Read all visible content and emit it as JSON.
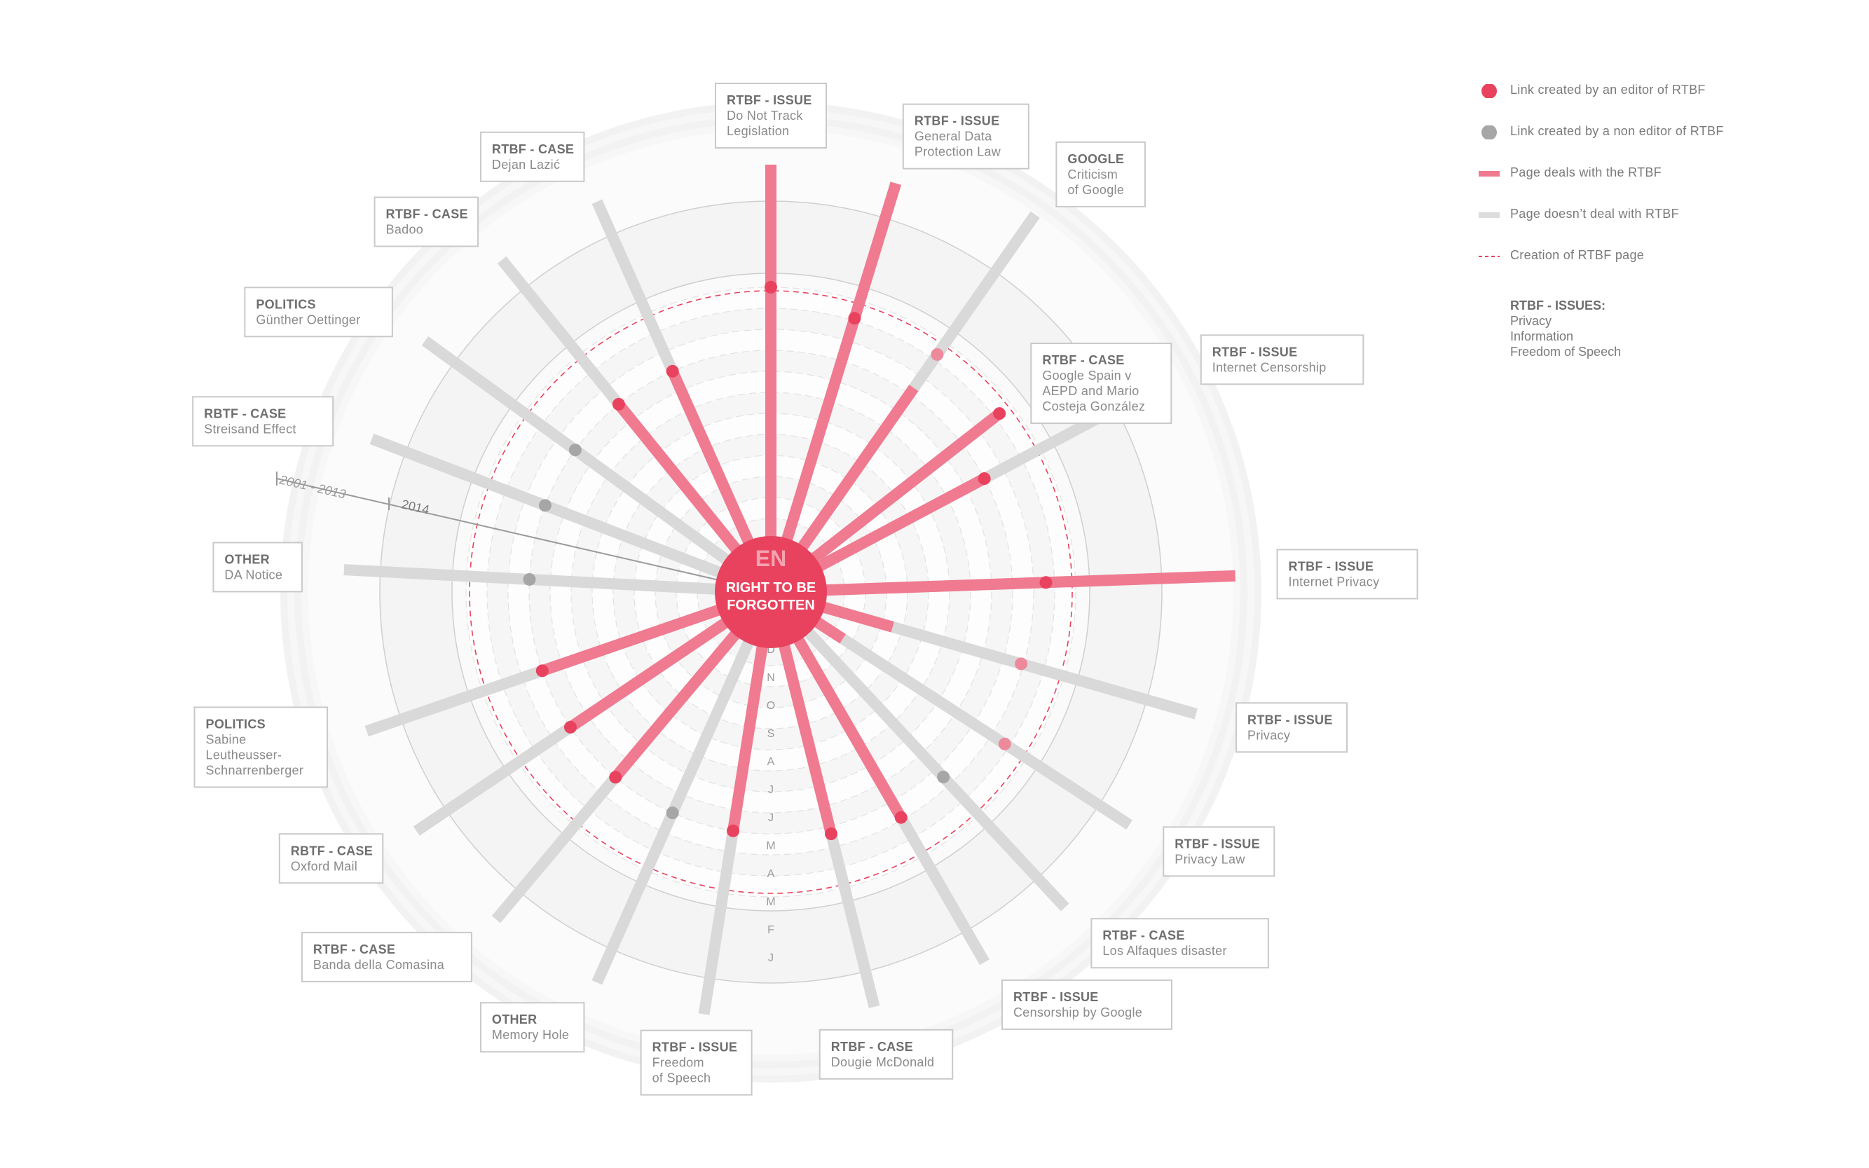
{
  "center": {
    "code": "EN",
    "title_line1": "RIGHT TO BE",
    "title_line2": "FORGOTTEN"
  },
  "colors": {
    "red": "#e8425e",
    "red_light": "#f07a90",
    "grey_bar": "#d9d9d9",
    "grey_dot": "#a6a6a6",
    "ring_fill": "#f4f4f4"
  },
  "year_labels": {
    "outer": "2001 - 2013",
    "inner": "2014"
  },
  "months": [
    "D",
    "N",
    "O",
    "S",
    "A",
    "J",
    "J",
    "M",
    "A",
    "M",
    "F",
    "J"
  ],
  "legend": {
    "items": [
      {
        "type": "dot-red",
        "label": "Link created by an editor of RTBF"
      },
      {
        "type": "dot-grey",
        "label": "Link created by a non editor of RTBF"
      },
      {
        "type": "bar-red",
        "label": "Page deals with the RTBF"
      },
      {
        "type": "bar-grey",
        "label": "Page doesn’t deal with RTBF"
      },
      {
        "type": "dash-red",
        "label": "Creation of RTBF page"
      }
    ],
    "issues_title": "RTBF - ISSUES:",
    "issues": [
      "Privacy",
      "Information",
      "Freedom of Speech"
    ]
  },
  "spokes": [
    {
      "category": "RTBF - ISSUE",
      "name": [
        "Do Not Track",
        "Legislation"
      ],
      "angle": 0,
      "length": 1.0,
      "red_to": 1.0,
      "dot_at": 0.67,
      "dot": "red"
    },
    {
      "category": "RTBF - ISSUE",
      "name": [
        "General Data",
        "Protection Law"
      ],
      "angle": 17,
      "length": 1.0,
      "red_to": 1.0,
      "dot_at": 0.62,
      "dot": "red"
    },
    {
      "category": "GOOGLE",
      "name": [
        "Criticism",
        "of Google"
      ],
      "angle": 35,
      "length": 1.09,
      "red_to": 0.52,
      "dot_at": 0.63,
      "dot": "red_light"
    },
    {
      "category": "RTBF - CASE",
      "name": [
        "Google Spain v",
        "AEPD and Mario",
        "Costeja González"
      ],
      "angle": 52,
      "length": 0.63,
      "red_to": 0.63,
      "dot_at": 0.63,
      "dot": "red"
    },
    {
      "category": "RTBF - ISSUE",
      "name": [
        "Internet Censorship"
      ],
      "angle": 62,
      "length": 1.05,
      "red_to": 0.5,
      "dot_at": 0.5,
      "dot": "red"
    },
    {
      "category": "RTBF - ISSUE",
      "name": [
        "Internet Privacy"
      ],
      "angle": 88,
      "length": 1.1,
      "red_to": 1.1,
      "dot_at": 0.59,
      "dot": "red"
    },
    {
      "category": "RTBF - ISSUE",
      "name": [
        "Privacy"
      ],
      "angle": 106,
      "length": 1.04,
      "red_to": 0.19,
      "dot_at": 0.55,
      "dot": "red_light"
    },
    {
      "category": "RTBF - ISSUE",
      "name": [
        "Privacy Law"
      ],
      "angle": 123,
      "length": 1.0,
      "red_to": 0.08,
      "dot_at": 0.6,
      "dot": "red_light"
    },
    {
      "category": "RTBF - CASE",
      "name": [
        "Los Alfaques disaster"
      ],
      "angle": 137,
      "length": 1.01,
      "red_to": 0.0,
      "dot_at": 0.53,
      "dot": "grey"
    },
    {
      "category": "RTBF - ISSUE",
      "name": [
        "Censorship by Google"
      ],
      "angle": 150,
      "length": 1.0,
      "red_to": 0.55,
      "dot_at": 0.55,
      "dot": "red"
    },
    {
      "category": "RTBF - CASE",
      "name": [
        "Dougie McDonald"
      ],
      "angle": 166,
      "length": 1.0,
      "red_to": 0.52,
      "dot_at": 0.52,
      "dot": "red"
    },
    {
      "category": "RTBF - ISSUE",
      "name": [
        "Freedom",
        "of Speech"
      ],
      "angle": 189,
      "length": 1.0,
      "red_to": 0.5,
      "dot_at": 0.5,
      "dot": "red"
    },
    {
      "category": "OTHER",
      "name": [
        "Memory Hole"
      ],
      "angle": 204,
      "length": 1.0,
      "red_to": 0.0,
      "dot_at": 0.5,
      "dot": "grey"
    },
    {
      "category": "RTBF - CASE",
      "name": [
        "Banda della Comasina"
      ],
      "angle": 220,
      "length": 1.0,
      "red_to": 0.5,
      "dot_at": 0.5,
      "dot": "red"
    },
    {
      "category": "RBTF - CASE",
      "name": [
        "Oxford Mail"
      ],
      "angle": 236,
      "length": 1.0,
      "red_to": 0.5,
      "dot_at": 0.5,
      "dot": "red"
    },
    {
      "category": "POLITICS",
      "name": [
        "Sabine",
        "Leutheusser-",
        "Schnarrenberger"
      ],
      "angle": 251,
      "length": 1.0,
      "red_to": 0.5,
      "dot_at": 0.5,
      "dot": "red"
    },
    {
      "category": "OTHER",
      "name": [
        "DA Notice"
      ],
      "angle": 273,
      "length": 1.0,
      "red_to": 0.0,
      "dot_at": 0.5,
      "dot": "grey"
    },
    {
      "category": "RBTF - CASE",
      "name": [
        "Streisand Effect"
      ],
      "angle": 291,
      "length": 1.0,
      "red_to": 0.0,
      "dot_at": 0.5,
      "dot": "grey"
    },
    {
      "category": "POLITICS",
      "name": [
        "Günther Oettinger"
      ],
      "angle": 306,
      "length": 1.0,
      "red_to": 0.0,
      "dot_at": 0.5,
      "dot": "grey"
    },
    {
      "category": "RTBF - CASE",
      "name": [
        "Badoo"
      ],
      "angle": 321,
      "length": 1.0,
      "red_to": 0.5,
      "dot_at": 0.5,
      "dot": "red"
    },
    {
      "category": "RTBF - CASE",
      "name": [
        "Dejan Lazić"
      ],
      "angle": 336,
      "length": 1.0,
      "red_to": 0.5,
      "dot_at": 0.5,
      "dot": "red"
    }
  ]
}
